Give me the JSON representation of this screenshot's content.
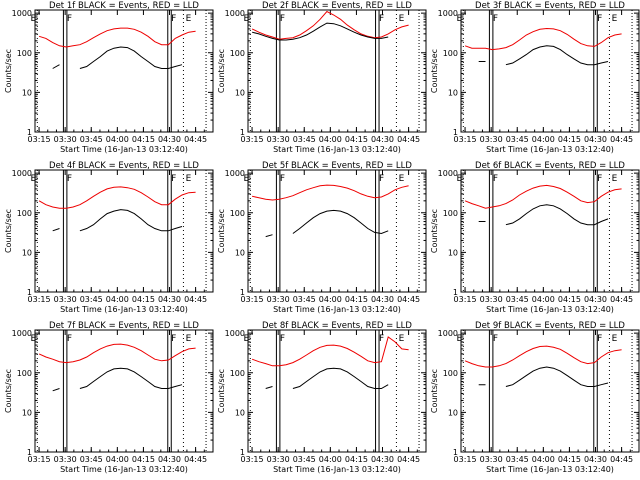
{
  "chart_data": {
    "type": "line",
    "panels": [
      {
        "title": "Det 1f BLACK = Events, RED = LLD",
        "red": [
          260,
          230,
          180,
          150,
          140,
          150,
          160,
          190,
          240,
          300,
          360,
          400,
          420,
          420,
          390,
          330,
          260,
          190,
          160,
          160,
          230,
          280,
          330,
          350
        ],
        "black": [
          null,
          null,
          40,
          50,
          null,
          null,
          40,
          45,
          60,
          80,
          110,
          130,
          140,
          135,
          110,
          80,
          60,
          45,
          40,
          40,
          45,
          50,
          null,
          null
        ],
        "marks": {
          "f1": "03:29",
          "f2": "03:31",
          "f3": "04:29",
          "f4": "04:31",
          "e1": "03:14",
          "e2": "04:38",
          "dot": "04:51"
        }
      },
      {
        "title": "Det 2f BLACK = Events, RED = LLD",
        "red": [
          400,
          330,
          280,
          250,
          220,
          230,
          240,
          280,
          360,
          480,
          700,
          1100,
          900,
          700,
          500,
          380,
          300,
          260,
          240,
          250,
          300,
          380,
          450,
          500
        ],
        "black": [
          330,
          300,
          260,
          230,
          210,
          210,
          220,
          240,
          280,
          350,
          450,
          560,
          540,
          480,
          400,
          330,
          280,
          250,
          230,
          230,
          250,
          null,
          null,
          null
        ],
        "marks": {
          "f1": "03:29",
          "f2": "03:31",
          "f3": "04:26",
          "f4": "04:28",
          "e1": "03:14",
          "e2": "04:38",
          "dot": "04:51"
        }
      },
      {
        "title": "Det 3f BLACK = Events, RED = LLD",
        "red": [
          150,
          130,
          130,
          130,
          120,
          125,
          135,
          160,
          210,
          280,
          340,
          390,
          410,
          400,
          360,
          290,
          220,
          170,
          150,
          145,
          180,
          240,
          280,
          300
        ],
        "black": [
          null,
          null,
          60,
          60,
          null,
          null,
          50,
          55,
          70,
          90,
          120,
          140,
          150,
          145,
          120,
          90,
          70,
          55,
          50,
          50,
          55,
          60,
          null,
          null
        ],
        "marks": {
          "f1": "03:29",
          "f2": "03:31",
          "f3": "04:29",
          "f4": "04:31",
          "e1": "03:14",
          "e2": "04:38",
          "dot": "04:51"
        }
      },
      {
        "title": "Det 4f BLACK = Events, RED = LLD",
        "red": [
          200,
          160,
          140,
          130,
          130,
          140,
          160,
          200,
          260,
          330,
          400,
          440,
          450,
          430,
          390,
          320,
          250,
          190,
          160,
          160,
          220,
          280,
          320,
          330
        ],
        "black": [
          null,
          null,
          35,
          40,
          null,
          null,
          35,
          40,
          50,
          70,
          95,
          110,
          120,
          115,
          95,
          70,
          50,
          40,
          35,
          35,
          40,
          45,
          null,
          null
        ],
        "marks": {
          "f1": "03:29",
          "f2": "03:31",
          "f3": "04:29",
          "f4": "04:31",
          "e1": "03:14",
          "e2": "04:38",
          "dot": "04:51"
        }
      },
      {
        "title": "Det 5f BLACK = Events, RED = LLD",
        "red": [
          260,
          240,
          220,
          210,
          220,
          240,
          270,
          320,
          380,
          430,
          480,
          500,
          490,
          460,
          420,
          360,
          300,
          260,
          240,
          250,
          300,
          380,
          440,
          480
        ],
        "black": [
          null,
          null,
          25,
          28,
          null,
          null,
          30,
          40,
          55,
          75,
          95,
          110,
          115,
          110,
          95,
          75,
          55,
          40,
          32,
          30,
          35,
          null,
          null,
          null
        ],
        "marks": {
          "f1": "03:29",
          "f2": "03:31",
          "f3": "04:26",
          "f4": "04:28",
          "e1": "03:14",
          "e2": "04:38",
          "dot": "04:51"
        }
      },
      {
        "title": "Det 6f BLACK = Events, RED = LLD",
        "red": [
          200,
          170,
          150,
          130,
          140,
          150,
          170,
          210,
          280,
          350,
          420,
          470,
          490,
          460,
          410,
          330,
          260,
          200,
          180,
          190,
          260,
          330,
          380,
          400
        ],
        "black": [
          null,
          null,
          60,
          60,
          null,
          null,
          50,
          55,
          70,
          95,
          125,
          150,
          160,
          150,
          125,
          95,
          70,
          55,
          50,
          50,
          60,
          70,
          null,
          null
        ],
        "marks": {
          "f1": "03:29",
          "f2": "03:31",
          "f3": "04:29",
          "f4": "04:31",
          "e1": "03:14",
          "e2": "04:38",
          "dot": "04:51"
        }
      },
      {
        "title": "Det 7f BLACK = Events, RED = LLD",
        "red": [
          300,
          250,
          220,
          190,
          180,
          190,
          210,
          250,
          320,
          400,
          470,
          520,
          530,
          500,
          440,
          360,
          280,
          220,
          200,
          210,
          270,
          340,
          400,
          420
        ],
        "black": [
          null,
          null,
          35,
          40,
          null,
          null,
          40,
          45,
          60,
          80,
          105,
          125,
          130,
          125,
          105,
          80,
          60,
          45,
          40,
          40,
          45,
          50,
          null,
          null
        ],
        "marks": {
          "f1": "03:29",
          "f2": "03:31",
          "f3": "04:29",
          "f4": "04:31",
          "e1": "03:14",
          "e2": "04:38",
          "dot": "04:51"
        }
      },
      {
        "title": "Det 8f BLACK = Events, RED = LLD",
        "red": [
          220,
          190,
          170,
          150,
          150,
          160,
          180,
          220,
          280,
          360,
          440,
          490,
          500,
          470,
          410,
          330,
          260,
          200,
          180,
          190,
          800,
          600,
          400,
          380
        ],
        "black": [
          null,
          null,
          40,
          45,
          null,
          null,
          40,
          45,
          60,
          80,
          105,
          125,
          130,
          125,
          105,
          80,
          60,
          45,
          40,
          40,
          50,
          null,
          null,
          null
        ],
        "marks": {
          "f1": "03:29",
          "f2": "03:31",
          "f3": "04:26",
          "f4": "04:28",
          "e1": "03:14",
          "e2": "04:38",
          "dot": "04:51"
        }
      },
      {
        "title": "Det 9f BLACK = Events, RED = LLD",
        "red": [
          200,
          170,
          150,
          140,
          140,
          150,
          170,
          210,
          270,
          340,
          410,
          460,
          470,
          440,
          390,
          310,
          240,
          190,
          170,
          180,
          250,
          320,
          360,
          380
        ],
        "black": [
          null,
          null,
          50,
          50,
          null,
          null,
          45,
          50,
          65,
          85,
          110,
          130,
          140,
          130,
          110,
          85,
          65,
          50,
          45,
          45,
          50,
          55,
          null,
          null
        ],
        "marks": {
          "f1": "03:29",
          "f2": "03:31",
          "f3": "04:29",
          "f4": "04:31",
          "e1": "03:14",
          "e2": "04:38",
          "dot": "04:51"
        }
      }
    ],
    "x_ticks": [
      "03:15",
      "03:30",
      "03:45",
      "04:00",
      "04:15",
      "04:30",
      "04:45"
    ],
    "xlim": [
      "03:12:40",
      "04:55"
    ],
    "xlabel": "Start Time (16-Jan-13 03:12:40)",
    "ylabel": "Counts/sec",
    "y_ticks": [
      "1",
      "10",
      "100",
      "1000"
    ],
    "ylim": [
      1,
      1200
    ],
    "yscale": "log",
    "series": [
      {
        "name": "Events",
        "color": "#000000"
      },
      {
        "name": "LLD",
        "color": "#ee0000"
      }
    ],
    "mark_labels": {
      "f": "F",
      "e": "E"
    }
  }
}
